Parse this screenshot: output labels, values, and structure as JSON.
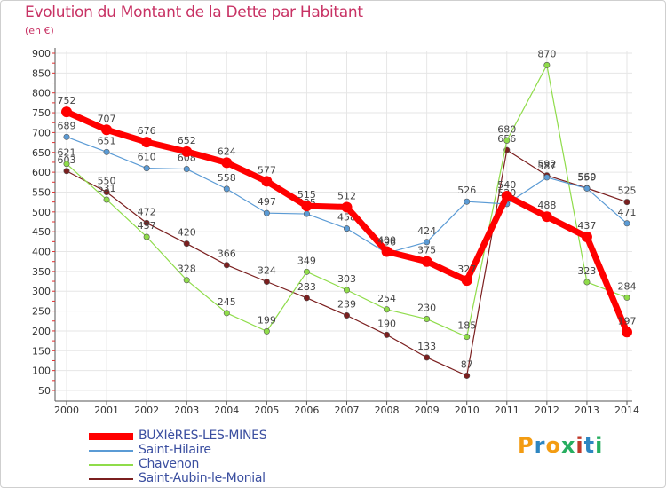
{
  "title": "Evolution du Montant de la Dette par Habitant",
  "subtitle": "(en €)",
  "logo": {
    "text": "Proxiti",
    "colors": [
      "#f39c12",
      "#2e86c1",
      "#f39c12",
      "#27ae60",
      "#c0392b",
      "#2e86c1",
      "#27ae60"
    ]
  },
  "chart_data": {
    "type": "line",
    "title": "Evolution du Montant de la Dette par Habitant",
    "ylabel": "(en €)",
    "xlabel": "",
    "ylim": [
      50,
      900
    ],
    "yticks": [
      50,
      100,
      150,
      200,
      250,
      300,
      350,
      400,
      450,
      500,
      550,
      600,
      650,
      700,
      750,
      800,
      850,
      900
    ],
    "categories": [
      "2000",
      "2001",
      "2002",
      "2003",
      "2004",
      "2005",
      "2006",
      "2007",
      "2008",
      "2009",
      "2010",
      "2011",
      "2012",
      "2013",
      "2014"
    ],
    "grid": true,
    "legend_position": "bottom-left",
    "series": [
      {
        "name": "BUXIèRES-LES-MINES",
        "color": "#ff0000",
        "values": [
          752,
          707,
          676,
          652,
          624,
          577,
          515,
          512,
          400,
          375,
          327,
          540,
          488,
          437,
          197
        ]
      },
      {
        "name": "Saint-Hilaire",
        "color": "#5b9bd5",
        "values": [
          689,
          651,
          610,
          608,
          558,
          497,
          495,
          458,
          396,
          424,
          526,
          520,
          587,
          559,
          471
        ]
      },
      {
        "name": "Chavenon",
        "color": "#8fdc4a",
        "values": [
          621,
          531,
          437,
          328,
          245,
          199,
          349,
          303,
          254,
          230,
          185,
          680,
          870,
          323,
          284
        ]
      },
      {
        "name": "Saint-Aubin-le-Monial",
        "color": "#7b1f1f",
        "values": [
          603,
          550,
          472,
          420,
          366,
          324,
          283,
          239,
          190,
          133,
          87,
          656,
          592,
          560,
          525
        ]
      }
    ]
  }
}
